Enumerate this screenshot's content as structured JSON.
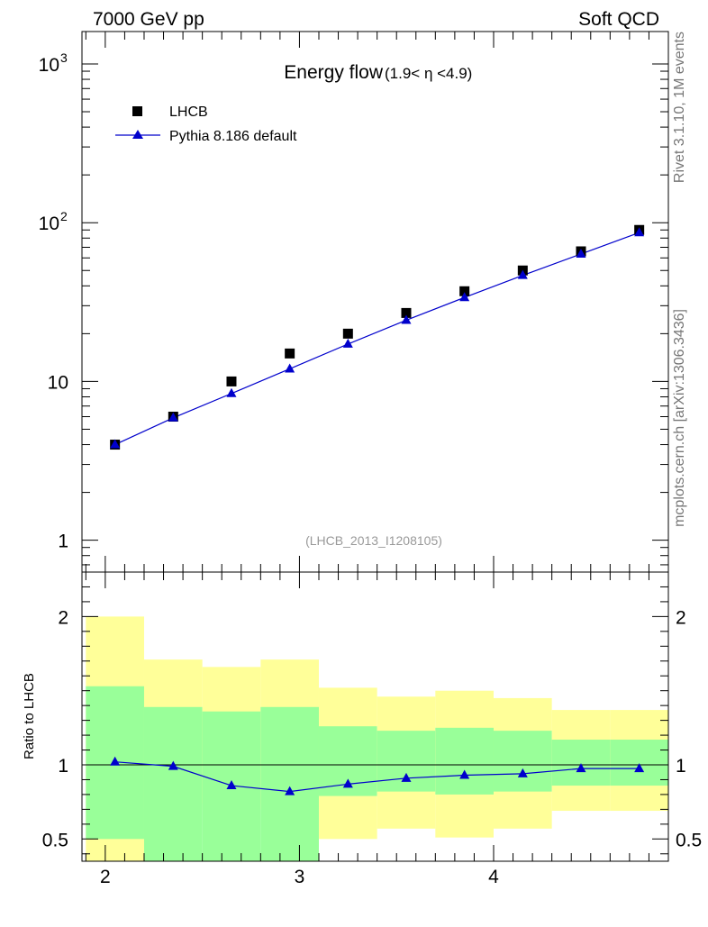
{
  "header": {
    "left": "7000 GeV pp",
    "right": "Soft QCD"
  },
  "side_labels": {
    "rivet": "Rivet 3.1.10,  1M events",
    "source": "mcplots.cern.ch [arXiv:1306.3436]"
  },
  "chart_data": [
    {
      "type": "scatter",
      "panel": "main",
      "title": "Energy flow",
      "title_suffix": "(1.9< η <4.9)",
      "watermark": "(LHCB_2013_I1208105)",
      "y_scale": "log",
      "xlim": [
        1.88,
        4.9
      ],
      "ylim": [
        0.63,
        1600
      ],
      "y_ticks": [
        {
          "value": 1,
          "base": "1",
          "exp": ""
        },
        {
          "value": 10,
          "base": "10",
          "exp": ""
        },
        {
          "value": 100,
          "base": "10",
          "exp": "2"
        },
        {
          "value": 1000,
          "base": "10",
          "exp": "3"
        }
      ],
      "legend": {
        "position": "top-left",
        "entries": [
          "LHCB",
          "Pythia 8.186 default"
        ]
      },
      "series": [
        {
          "name": "LHCB",
          "marker": "square",
          "color": "#000000",
          "x": [
            2.05,
            2.35,
            2.65,
            2.95,
            3.25,
            3.55,
            3.85,
            4.15,
            4.45,
            4.75
          ],
          "values": [
            4.0,
            6.0,
            10.0,
            15.0,
            20.0,
            27.0,
            37.0,
            50.0,
            66.0,
            90.0
          ]
        },
        {
          "name": "Pythia 8.186 default",
          "marker": "triangle",
          "color": "#0000cc",
          "x": [
            2.05,
            2.35,
            2.65,
            2.95,
            3.25,
            3.55,
            3.85,
            4.15,
            4.45,
            4.75
          ],
          "values": [
            4.0,
            5.9,
            8.4,
            12.0,
            17.2,
            24.3,
            33.8,
            46.6,
            63.5,
            86.6
          ]
        }
      ]
    },
    {
      "type": "line",
      "panel": "ratio",
      "ylabel": "Ratio to LHCB",
      "xlim": [
        1.88,
        4.9
      ],
      "ylim": [
        0.35,
        2.3
      ],
      "x_ticks": [
        2,
        3,
        4
      ],
      "y_ticks": [
        0.5,
        1,
        2
      ],
      "reference_line": 1,
      "bands": {
        "colors": {
          "outer": "#ffff99",
          "inner": "#99ff99"
        },
        "edges": [
          1.9,
          2.2,
          2.5,
          2.8,
          3.1,
          3.4,
          3.7,
          4.0,
          4.3,
          4.6,
          4.9
        ],
        "outer_low": [
          0.3,
          0.7,
          0.74,
          0.7,
          0.5,
          0.57,
          0.51,
          0.57,
          0.69,
          0.69
        ],
        "outer_high": [
          2.0,
          1.71,
          1.66,
          1.71,
          1.52,
          1.46,
          1.5,
          1.45,
          1.37,
          1.37
        ],
        "inner_low": [
          0.5,
          0.3,
          0.3,
          0.3,
          0.79,
          0.82,
          0.8,
          0.82,
          0.86,
          0.86
        ],
        "inner_high": [
          1.53,
          1.39,
          1.36,
          1.39,
          1.26,
          1.23,
          1.25,
          1.23,
          1.17,
          1.17
        ]
      },
      "series": [
        {
          "name": "Pythia 8.186 default",
          "marker": "triangle",
          "color": "#0000cc",
          "x": [
            2.05,
            2.35,
            2.65,
            2.95,
            3.25,
            3.55,
            3.85,
            4.15,
            4.45,
            4.75
          ],
          "values": [
            1.02,
            0.99,
            0.86,
            0.82,
            0.87,
            0.91,
            0.93,
            0.94,
            0.975,
            0.975
          ]
        }
      ]
    }
  ]
}
